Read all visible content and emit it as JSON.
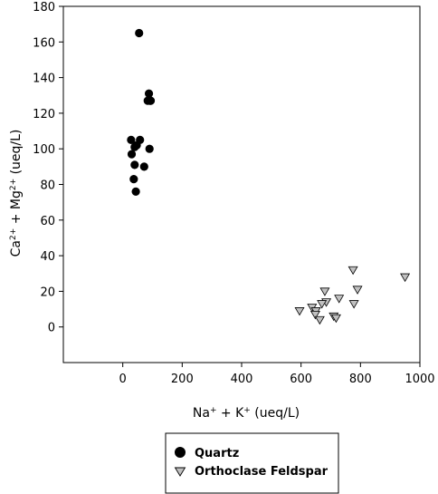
{
  "chart_data": {
    "type": "scatter",
    "xlabel": {
      "parts": [
        "Na",
        "+",
        " + K",
        "+",
        " (ueq/L)"
      ]
    },
    "ylabel": {
      "parts": [
        "Ca",
        "2+",
        " + Mg",
        "2+",
        " (ueq/L)"
      ]
    },
    "xlim": [
      -200,
      1000
    ],
    "ylim": [
      -20,
      180
    ],
    "xticks": [
      0,
      200,
      400,
      600,
      800,
      1000
    ],
    "yticks": [
      0,
      20,
      40,
      60,
      80,
      100,
      120,
      140,
      160,
      180
    ],
    "grid": false,
    "legend_position": "bottom",
    "series": [
      {
        "name": "Quartz",
        "marker": "circle",
        "color": "#000000",
        "points": [
          [
            55,
            165
          ],
          [
            88,
            131
          ],
          [
            92,
            127
          ],
          [
            84,
            127
          ],
          [
            94,
            127
          ],
          [
            28,
            105
          ],
          [
            58,
            105
          ],
          [
            47,
            102
          ],
          [
            40,
            101
          ],
          [
            90,
            100
          ],
          [
            30,
            97
          ],
          [
            40,
            91
          ],
          [
            72,
            90
          ],
          [
            37,
            83
          ],
          [
            44,
            76
          ]
        ]
      },
      {
        "name": "Orthoclase Feldspar",
        "marker": "triangle-down",
        "color": "#c0c0c0",
        "points": [
          [
            775,
            32
          ],
          [
            950,
            28
          ],
          [
            790,
            21
          ],
          [
            680,
            20
          ],
          [
            728,
            16
          ],
          [
            685,
            14
          ],
          [
            670,
            13
          ],
          [
            778,
            13
          ],
          [
            637,
            11
          ],
          [
            650,
            9
          ],
          [
            595,
            9
          ],
          [
            648,
            7
          ],
          [
            710,
            6
          ],
          [
            718,
            5
          ],
          [
            663,
            4
          ]
        ]
      }
    ]
  }
}
